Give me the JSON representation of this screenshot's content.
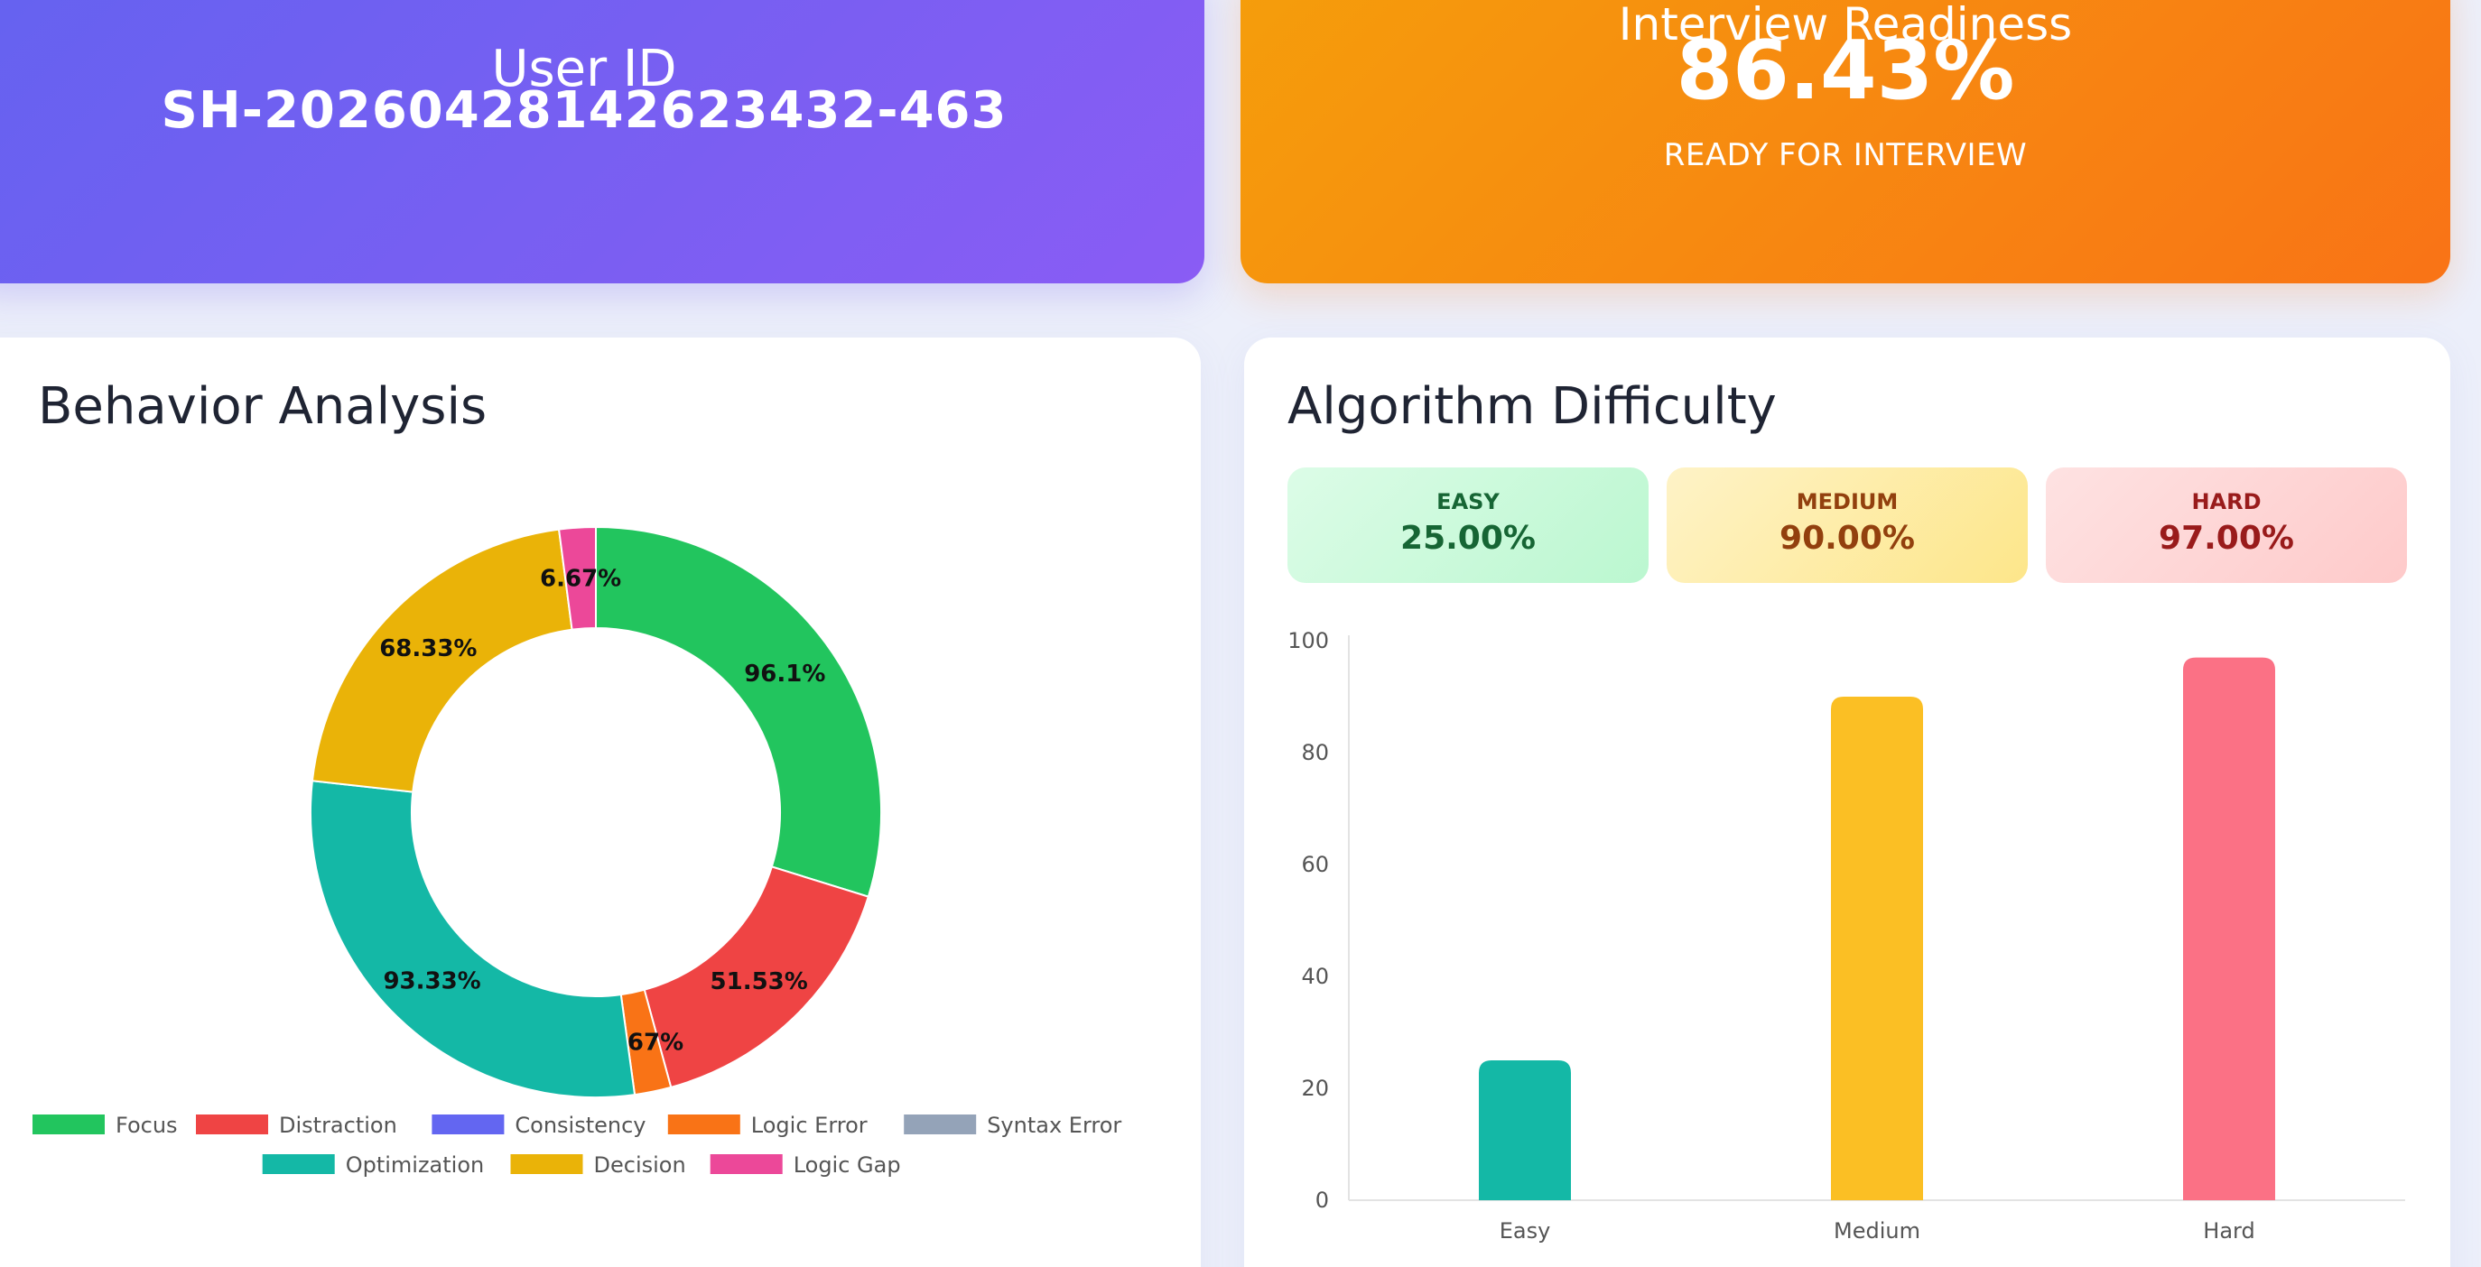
{
  "user": {
    "label": "User ID",
    "id": "SH-20260428142623432-463"
  },
  "readiness": {
    "label": "Interview Readiness",
    "value": "86.43%",
    "status": "READY FOR INTERVIEW"
  },
  "colors": {
    "focus": "#22c55e",
    "distraction": "#ef4444",
    "consistency": "#6366f1",
    "logic_error": "#f97316",
    "syntax_error": "#94a3b8",
    "optimization": "#14b8a6",
    "decision": "#eab308",
    "logic_gap": "#ec4899",
    "bar_easy": "#14b8a6",
    "bar_medium": "#fbbf24",
    "bar_hard": "#fb7185"
  },
  "behavior": {
    "title": "Behavior Analysis",
    "chart_data": {
      "type": "pie",
      "variant": "doughnut",
      "labels": [
        "Focus",
        "Distraction",
        "Consistency",
        "Logic Error",
        "Syntax Error",
        "Optimization",
        "Decision",
        "Logic Gap"
      ],
      "values": [
        96.1,
        51.53,
        0,
        6.67,
        0,
        93.33,
        68.33,
        6.67
      ],
      "data_labels": [
        "96.1%",
        "51.53%",
        "",
        "6.67%",
        "",
        "93.33%",
        "68.33%",
        "6.67%"
      ],
      "color_keys": [
        "focus",
        "distraction",
        "consistency",
        "logic_error",
        "syntax_error",
        "optimization",
        "decision",
        "logic_gap"
      ],
      "legend": "bottom"
    }
  },
  "difficulty": {
    "title": "Algorithm Difficulty",
    "pills": [
      {
        "label": "EASY",
        "value": "25.00%"
      },
      {
        "label": "MEDIUM",
        "value": "90.00%"
      },
      {
        "label": "HARD",
        "value": "97.00%"
      }
    ],
    "chart_data": {
      "type": "bar",
      "categories": [
        "Easy",
        "Medium",
        "Hard"
      ],
      "values": [
        25,
        90,
        97
      ],
      "color_keys": [
        "bar_easy",
        "bar_medium",
        "bar_hard"
      ],
      "ylim": [
        0,
        100
      ],
      "yticks": [
        0,
        20,
        40,
        60,
        80,
        100
      ],
      "grid": "none",
      "legend": "none"
    }
  }
}
